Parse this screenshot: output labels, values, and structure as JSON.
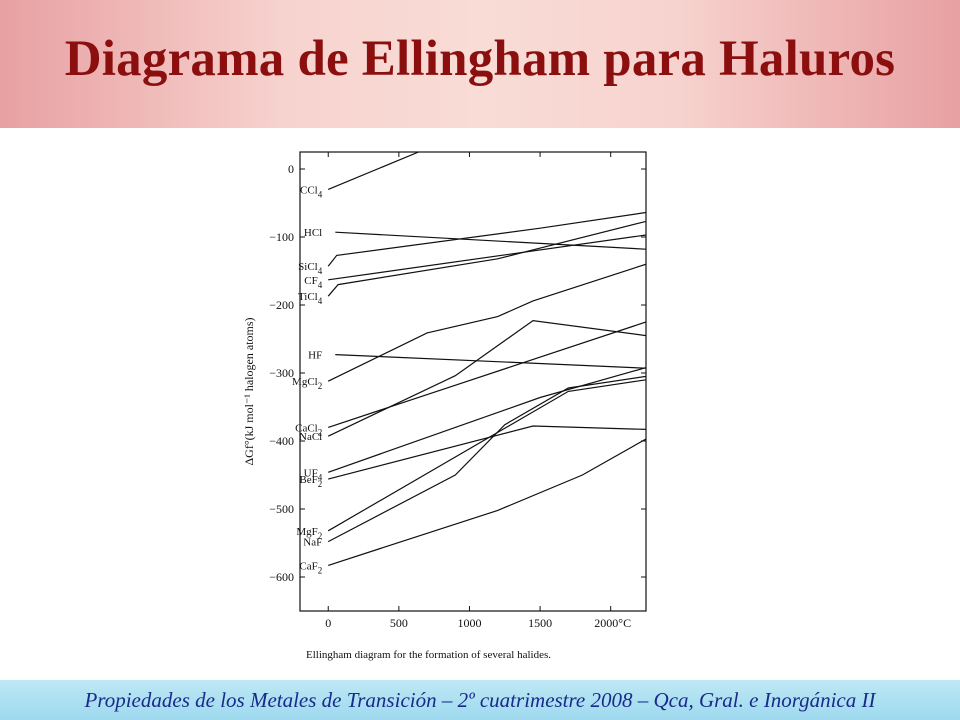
{
  "slide": {
    "title": "Diagrama de Ellingham para Haluros",
    "footer": "Propiedades de los Metales de Transición – 2º cuatrimestre 2008 – Qca, Gral. e Inorgánica II"
  },
  "colors": {
    "title": "#8b0f0f",
    "footer_text": "#1a2a8a",
    "header_band": "#f4c4c0",
    "footer_band": "#a9dff1",
    "lines": "#111111"
  },
  "chart_data": {
    "type": "line",
    "caption": "Ellingham diagram for the formation of several halides.",
    "ylabel": "ΔGf°(kJ mol⁻¹ halogen atoms)",
    "xlabel": "",
    "x_ticks": [
      0,
      500,
      1000,
      1500,
      "2000°C"
    ],
    "y_ticks": [
      0,
      -100,
      -200,
      -300,
      -400,
      -500,
      -600
    ],
    "xlim": [
      -200,
      2250
    ],
    "ylim": [
      -650,
      25
    ],
    "grid": false,
    "series": [
      {
        "name": "CCl4",
        "label_main": "CCl",
        "label_sub": "4",
        "points": [
          [
            0,
            -30
          ],
          [
            640,
            25
          ]
        ]
      },
      {
        "name": "HCl",
        "label_main": "HCl",
        "label_sub": "",
        "points": [
          [
            50,
            -93
          ],
          [
            2250,
            -118
          ]
        ]
      },
      {
        "name": "SiCl4",
        "label_main": "SiCl",
        "label_sub": "4",
        "points": [
          [
            0,
            -143
          ],
          [
            60,
            -127
          ],
          [
            1500,
            -87
          ],
          [
            2250,
            -64
          ]
        ]
      },
      {
        "name": "CF4",
        "label_main": "CF",
        "label_sub": "4",
        "points": [
          [
            0,
            -163
          ],
          [
            2250,
            -97
          ]
        ]
      },
      {
        "name": "TiCl4",
        "label_main": "TiCl",
        "label_sub": "4",
        "points": [
          [
            0,
            -187
          ],
          [
            70,
            -170
          ],
          [
            1200,
            -132
          ],
          [
            2250,
            -77
          ]
        ]
      },
      {
        "name": "MgCl2",
        "label_main": "MgCl",
        "label_sub": "2",
        "points": [
          [
            0,
            -312
          ],
          [
            700,
            -241
          ],
          [
            1200,
            -217
          ],
          [
            1450,
            -194
          ],
          [
            2250,
            -140
          ]
        ]
      },
      {
        "name": "HF",
        "label_main": "HF",
        "label_sub": "",
        "points": [
          [
            50,
            -273
          ],
          [
            2250,
            -293
          ]
        ]
      },
      {
        "name": "CaCl2",
        "label_main": "CaCl",
        "label_sub": "2",
        "points": [
          [
            0,
            -380
          ],
          [
            2250,
            -225
          ]
        ]
      },
      {
        "name": "NaCl",
        "label_main": "NaCl",
        "label_sub": "",
        "points": [
          [
            0,
            -393
          ],
          [
            900,
            -304
          ],
          [
            1450,
            -223
          ],
          [
            2250,
            -245
          ]
        ]
      },
      {
        "name": "UF4",
        "label_main": "UF",
        "label_sub": "4",
        "points": [
          [
            0,
            -446
          ],
          [
            1500,
            -336
          ],
          [
            2250,
            -292
          ]
        ]
      },
      {
        "name": "BeF2",
        "label_main": "BeF",
        "label_sub": "2",
        "points": [
          [
            0,
            -456
          ],
          [
            1450,
            -378
          ],
          [
            2250,
            -383
          ]
        ]
      },
      {
        "name": "MgF2",
        "label_main": "MgF",
        "label_sub": "2",
        "points": [
          [
            0,
            -532
          ],
          [
            1700,
            -327
          ],
          [
            2250,
            -310
          ]
        ]
      },
      {
        "name": "NaF",
        "label_main": "NaF",
        "label_sub": "",
        "points": [
          [
            0,
            -548
          ],
          [
            900,
            -450
          ],
          [
            1250,
            -376
          ],
          [
            1700,
            -322
          ],
          [
            2250,
            -305
          ]
        ]
      },
      {
        "name": "CaF2",
        "label_main": "CaF",
        "label_sub": "2",
        "points": [
          [
            0,
            -583
          ],
          [
            1200,
            -502
          ],
          [
            1800,
            -450
          ],
          [
            2250,
            -397
          ]
        ]
      }
    ]
  }
}
